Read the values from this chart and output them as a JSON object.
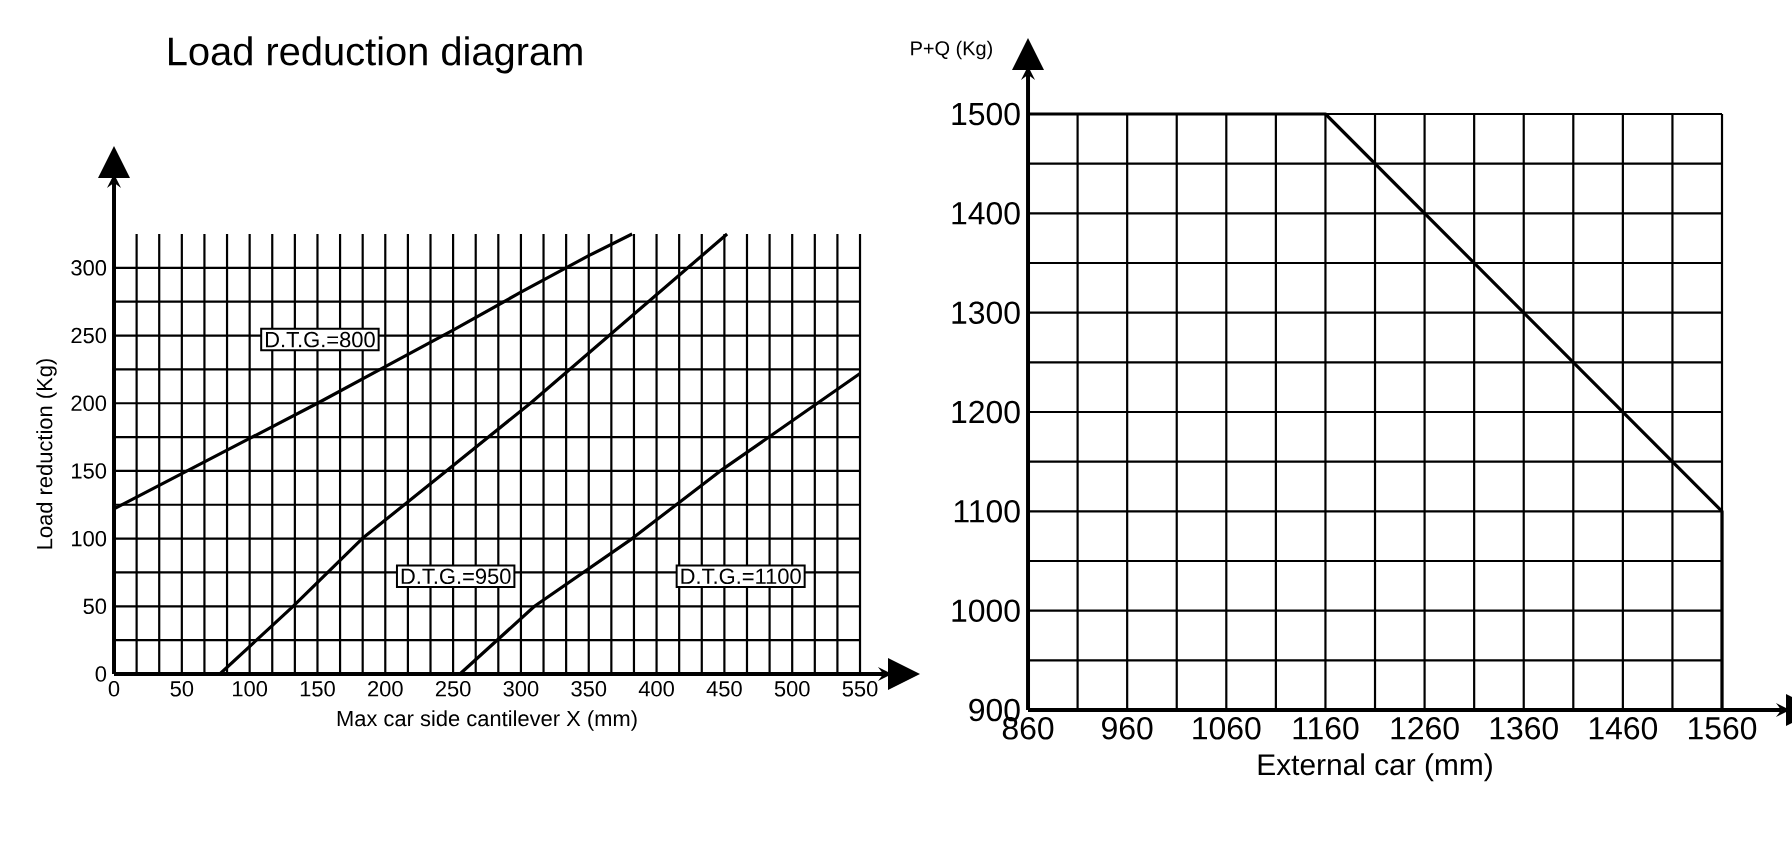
{
  "chart_data": [
    {
      "type": "line",
      "title": "Load reduction diagram",
      "xlabel": "Max car side cantilever X (mm)",
      "ylabel": "Load reduction (Kg)",
      "xlim": [
        0,
        550
      ],
      "ylim": [
        0,
        325
      ],
      "xticks": [
        0,
        50,
        100,
        150,
        200,
        250,
        300,
        350,
        400,
        450,
        500,
        550
      ],
      "yticks": [
        0,
        50,
        100,
        150,
        200,
        250,
        300
      ],
      "grid": true,
      "series": [
        {
          "color": "#000000",
          "x": [
            0,
            50,
            100,
            150,
            200,
            250,
            300,
            350,
            382
          ],
          "values": [
            122,
            148,
            174,
            200,
            227,
            254,
            282,
            309,
            325
          ]
        },
        {
          "color": "#000000",
          "x": [
            78,
            132,
            183,
            245,
            307,
            452
          ],
          "values": [
            0,
            50,
            100,
            150,
            200,
            325
          ]
        },
        {
          "color": "#000000",
          "x": [
            255,
            310,
            382,
            447,
            550
          ],
          "values": [
            0,
            50,
            100,
            150,
            222
          ]
        }
      ],
      "annotations": [
        "D.T.G.=800",
        "D.T.G.=950",
        "D.T.G.=1100"
      ]
    },
    {
      "type": "line",
      "xlabel": "External car (mm)",
      "ylabel": "P+Q (Kg)",
      "xlim": [
        860,
        1560
      ],
      "ylim": [
        900,
        1500
      ],
      "xticks": [
        860,
        960,
        1060,
        1160,
        1260,
        1360,
        1460,
        1560
      ],
      "yticks": [
        900,
        1000,
        1100,
        1200,
        1300,
        1400,
        1500
      ],
      "grid": true,
      "series": [
        {
          "color": "#000000",
          "x": [
            860,
            1160,
            1560,
            1560
          ],
          "values": [
            1500,
            1500,
            1100,
            900
          ]
        }
      ]
    }
  ]
}
